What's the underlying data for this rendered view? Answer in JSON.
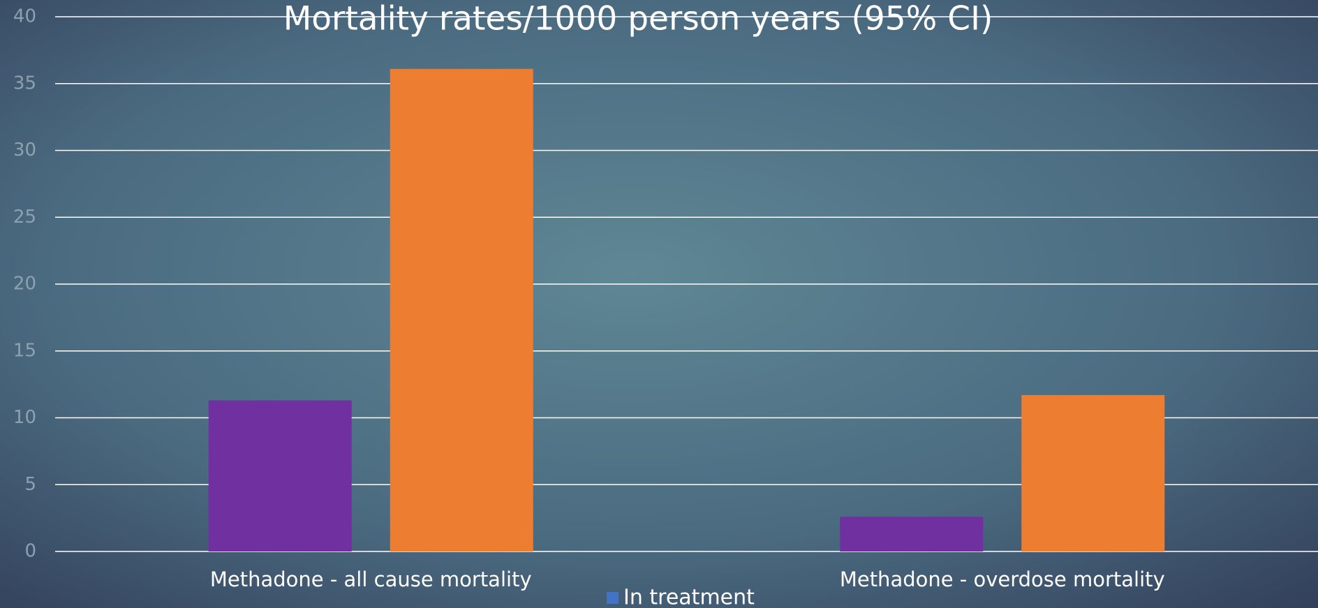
{
  "chart_data": {
    "type": "bar",
    "title": "Mortality rates/1000 person years (95% CI)",
    "categories": [
      "Methadone - all cause mortality",
      "Methadone - overdose mortality"
    ],
    "series": [
      {
        "name": "In treatment",
        "color": "#7030a0",
        "values": [
          11.3,
          2.6
        ]
      },
      {
        "color": "#ed7d31",
        "values": [
          36.1,
          11.7
        ]
      }
    ],
    "ylim": [
      0,
      40
    ],
    "yticks": [
      0,
      5,
      10,
      15,
      20,
      25,
      30,
      35,
      40
    ],
    "grid": true,
    "legend": "bottom",
    "legend_color": "#4472c4"
  }
}
